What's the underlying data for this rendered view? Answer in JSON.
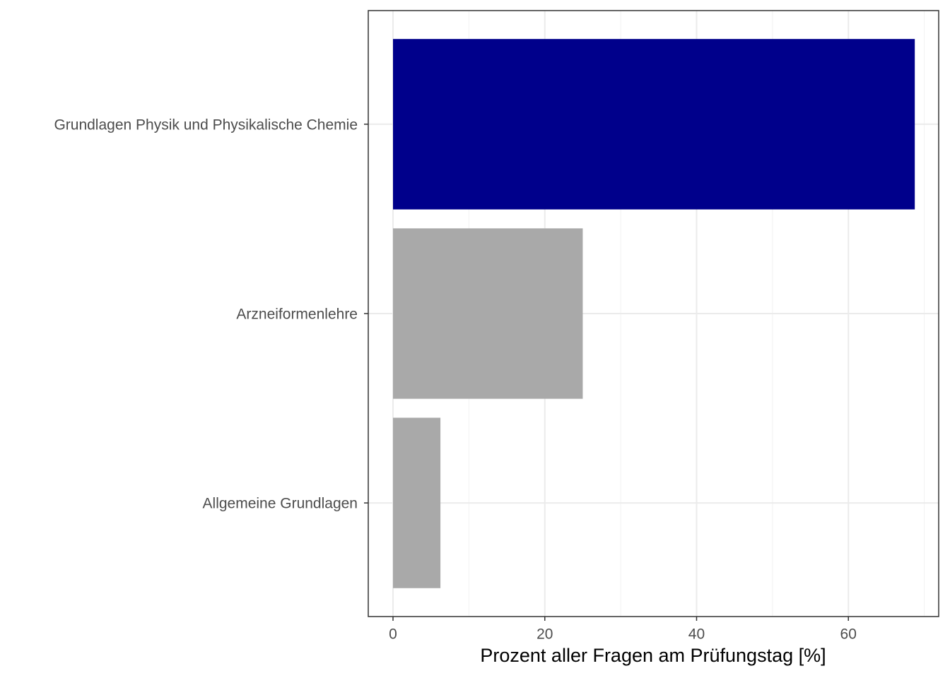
{
  "chart_data": {
    "type": "hbar",
    "categories": [
      "Grundlagen Physik und Physikalische Chemie",
      "Arzneiformenlehre",
      "Allgemeine Grundlagen"
    ],
    "values": [
      68.75,
      25,
      6.25
    ],
    "colors": [
      "#00008b",
      "#a9a9a9",
      "#a9a9a9"
    ],
    "x_label": "Prozent aller Fragen am Prüfungstag [%]",
    "xlim": [
      -3.26,
      71.9
    ],
    "xticks": [
      0,
      20,
      40,
      60
    ],
    "xminor": [
      10,
      30,
      50,
      70
    ],
    "grid": true
  }
}
